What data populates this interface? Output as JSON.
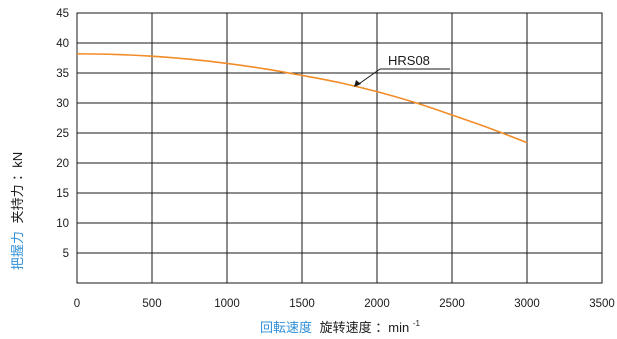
{
  "chart_data": {
    "type": "line",
    "xlim": [
      0,
      3500
    ],
    "ylim": [
      0,
      45
    ],
    "x_ticks": [
      "0",
      "500",
      "1000",
      "1500",
      "2000",
      "2500",
      "3000",
      "3500"
    ],
    "y_ticks": [
      "5",
      "10",
      "15",
      "20",
      "25",
      "30",
      "35",
      "40",
      "45"
    ],
    "grid": true,
    "series": [
      {
        "name": "HRS08",
        "color": "#f28c28",
        "x": [
          0,
          250,
          500,
          750,
          1000,
          1250,
          1500,
          1750,
          2000,
          2250,
          2500,
          2750,
          3000
        ],
        "y": [
          38.2,
          38.1,
          37.8,
          37.3,
          36.6,
          35.7,
          34.6,
          33.4,
          31.9,
          30.1,
          28.0,
          25.8,
          23.4
        ]
      }
    ],
    "annotation": {
      "text": "HRS08"
    },
    "xlabel": {
      "primary": "回転速度",
      "secondary": "旋转速度",
      "unit": "：min",
      "exp": "-1"
    },
    "ylabel": {
      "primary": "把握力",
      "secondary": "夹持力",
      "unit": "：kN"
    }
  }
}
